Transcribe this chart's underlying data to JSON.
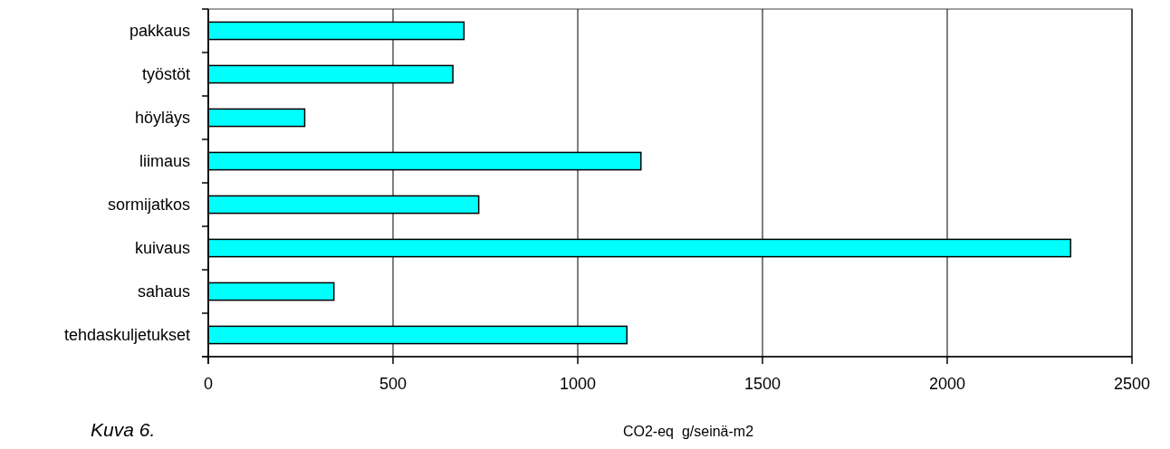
{
  "chart_data": {
    "type": "bar",
    "orientation": "horizontal",
    "categories": [
      "pakkaus",
      "työstöt",
      "höyläys",
      "liimaus",
      "sormijatkos",
      "kuivaus",
      "sahaus",
      "tehdaskuljetukset"
    ],
    "values": [
      692,
      662,
      261,
      1171,
      732,
      2334,
      340,
      1133
    ],
    "color": "#00ffff",
    "xlim": [
      0,
      2500
    ],
    "xticks": [
      0,
      500,
      1000,
      1500,
      2000,
      2500
    ],
    "xlabel": "CO2-eq  g/seinä-m2",
    "grid": "x",
    "annotations": [
      "Kuva 6."
    ]
  }
}
